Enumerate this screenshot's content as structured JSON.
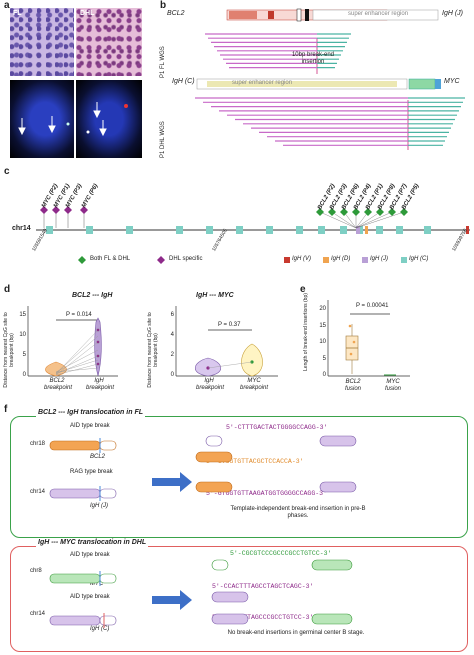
{
  "panels": {
    "a": "a",
    "b": "b",
    "c": "c",
    "d": "d",
    "e": "e",
    "f": "f"
  },
  "a": {
    "fl_label": "FL",
    "dhl_label": "DHL"
  },
  "b": {
    "gene_left": "BCL2",
    "super_enhancer": "super enhancer region",
    "igh_j": "IgH (J)",
    "insertion_line1": "10bp break-end",
    "insertion_line2": "insertion",
    "row1_label": "P1 FL WGS",
    "igh_c": "IgH (C)",
    "super_enhancer2": "super enhancer region",
    "gene_right": "MYC",
    "row2_label": "P1 DHL WGS"
  },
  "c": {
    "myc_labels": [
      "MYC (P2)",
      "MYC (P1)",
      "MYC (P3)",
      "MYC (P6)"
    ],
    "bcl2_labels": [
      "BCL2 (P2)",
      "BCL2 (P3)",
      "BCL2 (P6)",
      "BCL2 (P4)",
      "BCL2 (P1)",
      "BCL2 (P8)",
      "BCL2 (P7)",
      "BCL2 (P5)"
    ],
    "chr": "chr14",
    "coord1": "105591540",
    "coord2": "105764505",
    "coord3": "105939756",
    "legend": {
      "both": "Both FL & DHL",
      "dhl": "DHL specific",
      "ighv": "IgH (V)",
      "ighd": "IgH (D)",
      "ighj": "IgH (J)",
      "ighc": "IgH (C)"
    },
    "colors": {
      "both": "#2e9a3a",
      "dhl": "#8e2a8a",
      "v": "#c8392f",
      "d": "#f0a450",
      "j": "#b9a0d6",
      "c": "#7ecfc4"
    }
  },
  "d": {
    "left": {
      "title": "BCL2 --- IgH",
      "ylabel": "Distance from nearest CpG site to breakpoint (bp)",
      "p": "P = 0.014",
      "yticks": [
        "0",
        "5",
        "10",
        "15"
      ],
      "cats": [
        "BCL2 breakpoint",
        "IgH breakpoint"
      ]
    },
    "right": {
      "title": "IgH --- MYC",
      "p": "P = 0.37",
      "yticks": [
        "0",
        "2",
        "4",
        "6"
      ],
      "cats": [
        "IgH breakpoint",
        "MYC breakpoint"
      ]
    }
  },
  "e": {
    "ylabel": "Length of break-end insertions (bp)",
    "p": "P = 0.00041",
    "yticks": [
      "0",
      "5",
      "10",
      "15",
      "20"
    ],
    "cats": [
      "BCL2 fusion",
      "MYC fusion"
    ]
  },
  "f": {
    "box1_title": "BCL2 --- IgH translocation in FL",
    "aid": "AID type break",
    "chr18": "chr18",
    "bcl2": "BCL2",
    "rag": "RAG type break",
    "chr14": "chr14",
    "ighj": "IgH (J)",
    "seq1": "5'-CTTTGACTACTGGGGCCAGG-3'",
    "seq2": "5'-GTGGTGTTACGCTCCACCA-3'",
    "seq3": "5'-GTGGTGTTAAGATGGTGGGGCCAGG-3'",
    "note1": "Template-independent  break-end insertion in pre-B phases.",
    "box2_title": "IgH --- MYC translocation in DHL",
    "chr8": "chr8",
    "myc": "MYC",
    "ighc": "IgH (C)",
    "seq4": "5'-CGCGTCCCGCCCGCCTGTCC-3'",
    "seq5": "5'-CCACTTTAGCCTAGCTCAGC-3'",
    "seq6": "5'-CCACTTTAGCCCGCCTGTCC-3'",
    "note2": "No break-end insertions in germinal center B stage."
  },
  "chart_data": [
    {
      "type": "violin",
      "title": "BCL2 --- IgH",
      "ylabel": "Distance from nearest CpG site to breakpoint (bp)",
      "categories": [
        "BCL2 breakpoint",
        "IgH breakpoint"
      ],
      "ylim": [
        0,
        15
      ],
      "annotation": "P = 0.014"
    },
    {
      "type": "violin",
      "title": "IgH --- MYC",
      "categories": [
        "IgH breakpoint",
        "MYC breakpoint"
      ],
      "ylim": [
        0,
        6
      ],
      "annotation": "P = 0.37"
    },
    {
      "type": "box",
      "ylabel": "Length of break-end insertions (bp)",
      "categories": [
        "BCL2 fusion",
        "MYC fusion"
      ],
      "ylim": [
        0,
        20
      ],
      "annotation": "P = 0.00041"
    }
  ]
}
